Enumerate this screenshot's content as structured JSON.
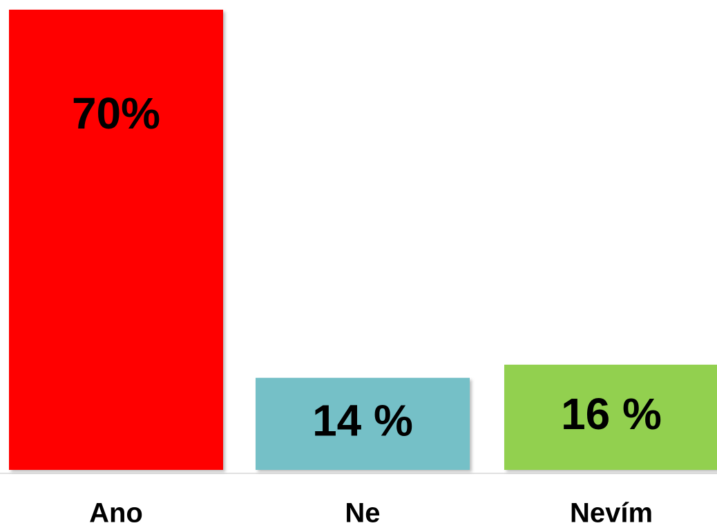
{
  "chart_data": {
    "type": "bar",
    "categories": [
      "Ano",
      "Ne",
      "Nevím"
    ],
    "values": [
      70,
      14,
      16
    ],
    "value_labels": [
      "70%",
      "14 %",
      "16 %"
    ],
    "colors": [
      "#ff0000",
      "#74c0c7",
      "#92d050"
    ]
  }
}
